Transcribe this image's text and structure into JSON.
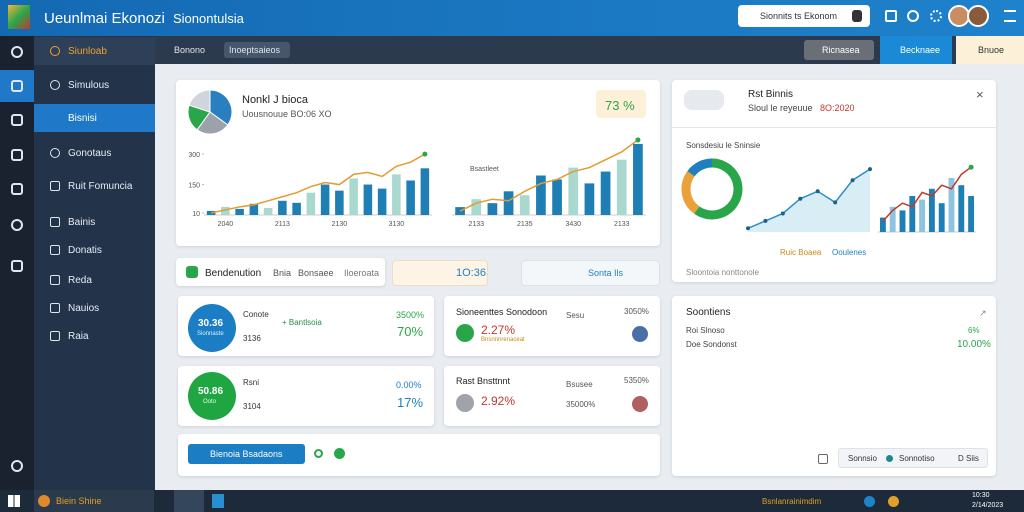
{
  "header": {
    "title": "Ueunlmai Ekonozi",
    "subtitle": "Sionontulsia",
    "search": "Sionnits ts Ekonom"
  },
  "sidebar": {
    "items": [
      "Siunloab",
      "Simulous",
      "Bisnisi",
      "Gonotaus",
      "Ruit Fomuncia",
      "Bainis",
      "Donatis",
      "Reda",
      "Nauios",
      "Raia"
    ]
  },
  "toolbar": {
    "view": "Bonono",
    "dropdown": "Inoeptsaieos",
    "buttons": [
      "Ricnasea",
      "Becknaee",
      "Bnuoe"
    ]
  },
  "overview": {
    "title": "Nonkl J bioca",
    "subtitle": "Uousnouue BO:06 XO",
    "badge": "73 %",
    "chart_caption": "Bsastleet"
  },
  "insight": {
    "title": "Rst Binnis",
    "subtitle": "Sloul le reyeuue",
    "value": "8O:2020",
    "caption": "Sonsdesiu le Sninsie",
    "legend": [
      "Ruic Boaea",
      "Ooulenes"
    ],
    "footer": "Sloontoia nonttonole"
  },
  "strip": {
    "title": "Bendenution",
    "tabs": [
      "Bnia",
      "Bonsaee"
    ],
    "extra": "Iloeroata",
    "box1": "1O:36",
    "box2": "Sonta Ils"
  },
  "stats": [
    {
      "circle": "30.36",
      "circle_sub": "Sionnaste",
      "label": "Conote",
      "sub": "3136",
      "tag": "+ Bantlsoia",
      "top": "3500%",
      "big": "70%"
    },
    {
      "circle": "50.86",
      "circle_sub": "Ooto",
      "label": "Rsni",
      "sub": "3104",
      "top": "0.00%",
      "big": "17%"
    },
    {
      "title": "Sioneenttes Sonodoon",
      "mid": "Sesu",
      "top": "3050%",
      "big": "2.27%",
      "sub": "Bnsnnnrenaceat"
    },
    {
      "title": "Rast Bnsttnnt",
      "mid": "Bsusee",
      "top": "5350%",
      "big": "2.92%",
      "sub": "35000%"
    }
  ],
  "summary": {
    "title": "Soontiens",
    "rows": [
      [
        "Roi Slnoso",
        "6%"
      ],
      [
        "Doe Sondonst",
        "10.00%"
      ]
    ],
    "footer": [
      "Sonnsio",
      "Sonnotiso",
      "D Siis"
    ]
  },
  "action": {
    "button": "Bienoia Bsadaons"
  },
  "taskbar": {
    "app": "Biein Shine",
    "status": "Bsnlanrainimdim",
    "time": "10:30",
    "date": "2/14/2023"
  },
  "charts": [
    {
      "type": "bar",
      "categories": [
        null,
        "2040",
        null,
        null,
        null,
        "2113",
        null,
        null,
        null,
        "2130",
        null,
        null,
        null,
        "3130",
        null,
        null
      ],
      "values": [
        20,
        40,
        30,
        55,
        35,
        70,
        60,
        110,
        150,
        120,
        180,
        150,
        130,
        200,
        170,
        230
      ],
      "line_values": [
        10,
        25,
        40,
        50,
        70,
        90,
        110,
        140,
        160,
        150,
        200,
        210,
        190,
        240,
        260,
        300
      ],
      "color": "#1f7fb5",
      "alt_color": "#a9d8cf",
      "line_color": "#e39b2e",
      "ylim": [
        0,
        330
      ],
      "yticks": [
        10,
        150,
        300
      ]
    },
    {
      "type": "bar",
      "categories": [
        null,
        "2133",
        null,
        null,
        "2135",
        null,
        null,
        "3430",
        null,
        null,
        "2133",
        null
      ],
      "values": [
        10,
        20,
        15,
        30,
        25,
        50,
        45,
        60,
        40,
        55,
        70,
        90
      ],
      "line_values": [
        5,
        15,
        20,
        18,
        30,
        40,
        45,
        55,
        60,
        70,
        80,
        95
      ],
      "color": "#1f7fb5",
      "alt_color": "#a9d8cf",
      "line_color": "#e39b2e",
      "ylim": [
        0,
        100
      ]
    },
    {
      "type": "pie",
      "values": [
        60,
        25,
        15
      ],
      "colors": [
        "#2aa64a",
        "#e9a23a",
        "#1f7fc0"
      ]
    },
    {
      "type": "area",
      "values": [
        5,
        15,
        25,
        45,
        55,
        40,
        70,
        85
      ],
      "color": "#2a8fc9",
      "ylim": [
        0,
        100
      ]
    },
    {
      "type": "bar",
      "values": [
        20,
        35,
        30,
        50,
        45,
        60,
        40,
        75,
        65,
        50
      ],
      "line_values": [
        15,
        30,
        40,
        35,
        55,
        50,
        65,
        60,
        80,
        90
      ],
      "color": "#1f7fb5",
      "alt_color": "#8fc4e0",
      "line_color": "#c0392b",
      "ylim": [
        0,
        100
      ]
    },
    {
      "type": "pie",
      "values": [
        35,
        25,
        20,
        20
      ],
      "colors": [
        "#2a7fc0",
        "#9aa3ab",
        "#2aa64a",
        "#cfd5db"
      ]
    }
  ]
}
